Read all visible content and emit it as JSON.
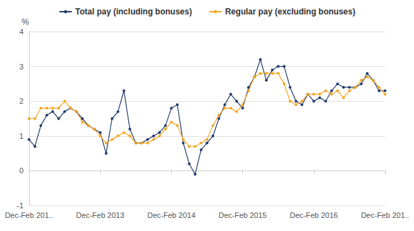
{
  "chart_data": {
    "type": "line",
    "ylabel": "%",
    "categories": [
      "Dec-Feb 201..",
      null,
      null,
      null,
      null,
      null,
      null,
      null,
      null,
      null,
      null,
      null,
      "Dec-Feb 2013",
      null,
      null,
      null,
      null,
      null,
      null,
      null,
      null,
      null,
      null,
      null,
      "Dec-Feb 2014",
      null,
      null,
      null,
      null,
      null,
      null,
      null,
      null,
      null,
      null,
      null,
      "Dec-Feb 2015",
      null,
      null,
      null,
      null,
      null,
      null,
      null,
      null,
      null,
      null,
      null,
      "Dec-Feb 2016",
      null,
      null,
      null,
      null,
      null,
      null,
      null,
      null,
      null,
      null,
      null,
      "Dec-Feb 201.."
    ],
    "series": [
      {
        "name": "Total pay (including bonuses)",
        "color": "#253c6e",
        "marker": "circle",
        "line_style": "solid",
        "values": [
          0.9,
          0.7,
          1.3,
          1.6,
          1.7,
          1.5,
          1.7,
          1.8,
          1.7,
          1.5,
          1.3,
          1.2,
          1.1,
          0.5,
          1.5,
          1.7,
          2.3,
          1.2,
          0.8,
          0.8,
          0.9,
          1.0,
          1.1,
          1.3,
          1.8,
          1.9,
          0.8,
          0.2,
          -0.1,
          0.6,
          0.8,
          1.0,
          1.5,
          1.9,
          2.2,
          2.0,
          1.8,
          2.4,
          2.7,
          3.2,
          2.6,
          2.9,
          3.0,
          3.0,
          2.4,
          2.0,
          1.9,
          2.2,
          2.0,
          2.1,
          2.0,
          2.3,
          2.5,
          2.4,
          2.4,
          2.4,
          2.5,
          2.8,
          2.6,
          2.3,
          2.3
        ]
      },
      {
        "name": "Regular pay (excluding bonuses)",
        "color": "#f5a623",
        "marker": "circle",
        "line_style": "solid",
        "values": [
          1.5,
          1.5,
          1.8,
          1.8,
          1.8,
          1.8,
          2.0,
          1.8,
          1.7,
          1.4,
          1.3,
          1.2,
          1.0,
          0.8,
          0.9,
          1.0,
          1.1,
          1.0,
          0.8,
          0.8,
          0.8,
          0.9,
          1.0,
          1.2,
          1.4,
          1.3,
          0.9,
          0.7,
          0.7,
          0.8,
          0.9,
          1.3,
          1.6,
          1.8,
          1.8,
          1.7,
          1.9,
          2.3,
          2.7,
          2.8,
          2.8,
          2.8,
          2.8,
          2.5,
          2.0,
          1.9,
          2.0,
          2.2,
          2.2,
          2.2,
          2.3,
          2.2,
          2.3,
          2.1,
          2.3,
          2.4,
          2.6,
          2.7,
          2.6,
          2.4,
          2.2
        ]
      }
    ],
    "ylim": [
      -1,
      4
    ],
    "yticks": [
      -1,
      0,
      1,
      2,
      3,
      4
    ],
    "grid": true,
    "legend": "top"
  }
}
